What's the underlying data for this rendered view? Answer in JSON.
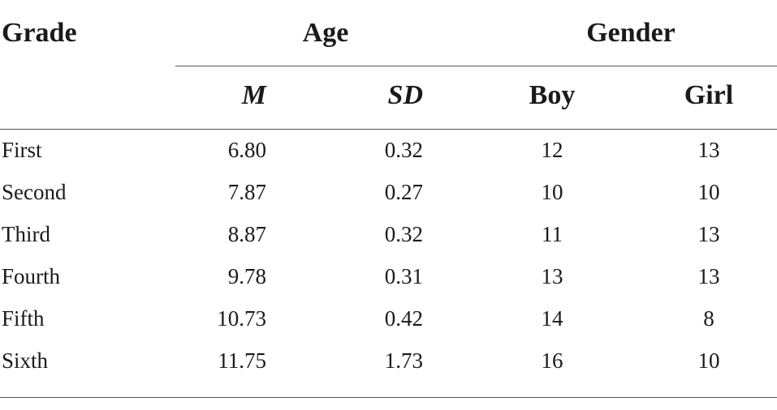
{
  "table": {
    "headers": {
      "grade": "Grade",
      "age": "Age",
      "gender": "Gender"
    },
    "subheaders": {
      "m": "M",
      "sd": "SD",
      "boy": "Boy",
      "girl": "Girl"
    },
    "rows": [
      {
        "grade": "First",
        "m": "6.80",
        "sd": "0.32",
        "boy": "12",
        "girl": "13"
      },
      {
        "grade": "Second",
        "m": "7.87",
        "sd": "0.27",
        "boy": "10",
        "girl": "10"
      },
      {
        "grade": "Third",
        "m": "8.87",
        "sd": "0.32",
        "boy": "11",
        "girl": "13"
      },
      {
        "grade": "Fourth",
        "m": "9.78",
        "sd": "0.31",
        "boy": "13",
        "girl": "13"
      },
      {
        "grade": "Fifth",
        "m": "10.73",
        "sd": "0.42",
        "boy": "14",
        "girl": "8"
      },
      {
        "grade": "Sixth",
        "m": "11.75",
        "sd": "1.73",
        "boy": "16",
        "girl": "10"
      }
    ]
  }
}
